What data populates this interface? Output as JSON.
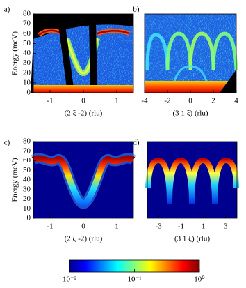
{
  "chart_data": [
    {
      "type": "heatmap",
      "panel": "a)",
      "xlabel": "(2 ξ -2) (rlu)",
      "ylabel": "Energy (meV)",
      "xlim": [
        -1.5,
        1.5
      ],
      "xticks": [
        -1,
        0,
        1
      ],
      "ylim": [
        0,
        80
      ],
      "yticks": [
        0,
        10,
        20,
        30,
        40,
        50,
        60,
        70,
        80
      ]
    },
    {
      "type": "heatmap",
      "panel": "b)",
      "xlabel": "(3 1 ξ) (rlu)",
      "xlim": [
        -4,
        4
      ],
      "xticks": [
        -4,
        -2,
        0,
        2,
        4
      ]
    },
    {
      "type": "heatmap",
      "panel": "c)",
      "xlabel": "(2 ξ -2) (rlu)",
      "ylabel": "Energy (meV)",
      "xlim": [
        -1.5,
        1.5
      ],
      "xticks": [
        -1,
        0,
        1
      ],
      "ylim": [
        0,
        80
      ],
      "yticks": [
        0,
        10,
        20,
        30,
        40,
        50,
        60,
        70,
        80
      ]
    },
    {
      "type": "heatmap",
      "panel": "d)",
      "xlabel": "(3 1 ξ) (rlu)",
      "xlim": [
        -4,
        4
      ],
      "xticks": [
        -3,
        -1,
        1,
        3
      ]
    },
    {
      "type": "colorbar",
      "log_scale": true,
      "lim": [
        0.01,
        1
      ],
      "ticks": [
        {
          "value": 0.01,
          "label": "10⁻²"
        },
        {
          "value": 0.1,
          "label": "10⁻¹"
        },
        {
          "value": 1,
          "label": "10⁰"
        }
      ]
    }
  ]
}
